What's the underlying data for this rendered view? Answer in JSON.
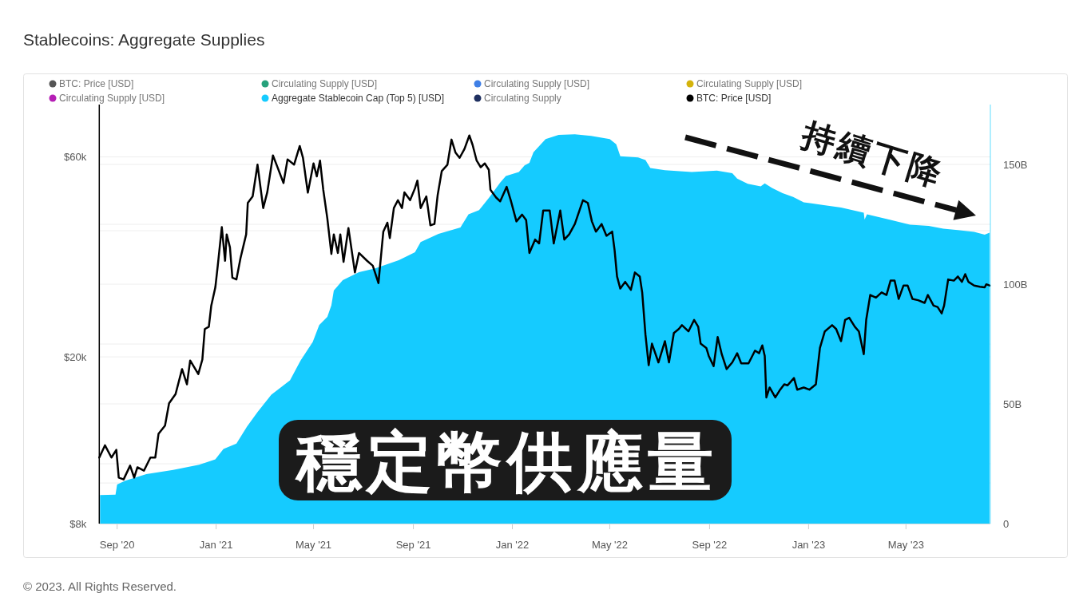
{
  "chart_data": {
    "type": "line",
    "title": "Stablecoins: Aggregate Supplies",
    "xlim": [
      "2020-08-10",
      "2023-08-13"
    ],
    "xticks": [
      {
        "value": "2020-09-01",
        "label": "Sep '20"
      },
      {
        "value": "2021-01-01",
        "label": "Jan '21"
      },
      {
        "value": "2021-05-01",
        "label": "May '21"
      },
      {
        "value": "2021-09-01",
        "label": "Sep '21"
      },
      {
        "value": "2022-01-01",
        "label": "Jan '22"
      },
      {
        "value": "2022-05-01",
        "label": "May '22"
      },
      {
        "value": "2022-09-01",
        "label": "Sep '22"
      },
      {
        "value": "2023-01-01",
        "label": "Jan '23"
      },
      {
        "value": "2023-05-01",
        "label": "May '23"
      }
    ],
    "log": "y",
    "ylim": [
      8000,
      80000
    ],
    "yticks": [
      {
        "value": 8000,
        "label": "$8k"
      },
      {
        "value": 10000,
        "label": null
      },
      {
        "value": 20000,
        "label": "$20k"
      },
      {
        "value": 40000,
        "label": null
      },
      {
        "value": 60000,
        "label": "$60k"
      }
    ],
    "y2lim": [
      0,
      175
    ],
    "y2ticks": [
      0,
      {
        "value": 25,
        "label": null
      },
      {
        "value": 50,
        "label": "50B"
      },
      {
        "value": 75,
        "label": null
      },
      {
        "value": 100,
        "label": "100B"
      },
      {
        "value": 125,
        "label": null
      },
      {
        "value": 150,
        "label": "150B"
      }
    ],
    "grid": "y",
    "legend": "top",
    "series": [
      {
        "name": "BTC: Price [USD]",
        "color": "#555555"
      },
      {
        "name": "Circulating Supply [USD]",
        "color": "#26a17b"
      },
      {
        "name": "Circulating Supply [USD]",
        "color": "#3f7fe6"
      },
      {
        "name": "Circulating Supply [USD]",
        "color": "#d4b30c"
      },
      {
        "name": "Circulating Supply [USD]",
        "color": "#b51fb5"
      },
      {
        "name": "Aggregate Stablecoin Cap (Top 5) [USD]",
        "color": "#15cbff",
        "type": "area",
        "axis": "y2",
        "x": [
          "2020-08-11",
          "2020-08-30",
          "2020-09-01",
          "2020-09-11",
          "2020-10-07",
          "2020-11-09",
          "2020-12-11",
          "2020-12-31",
          "2021-01-10",
          "2021-01-26",
          "2021-02-08",
          "2021-02-21",
          "2021-03-10",
          "2021-04-02",
          "2021-04-15",
          "2021-04-30",
          "2021-05-08",
          "2021-05-18",
          "2021-05-23",
          "2021-05-26",
          "2021-06-06",
          "2021-06-26",
          "2021-07-16",
          "2021-08-14",
          "2021-09-03",
          "2021-09-10",
          "2021-10-02",
          "2021-10-29",
          "2021-11-08",
          "2021-11-21",
          "2021-12-04",
          "2021-12-17",
          "2021-12-24",
          "2022-01-09",
          "2022-01-16",
          "2022-01-22",
          "2022-01-27",
          "2022-02-11",
          "2022-02-27",
          "2022-03-19",
          "2022-04-08",
          "2022-05-01",
          "2022-05-09",
          "2022-05-14",
          "2022-06-05",
          "2022-06-14",
          "2022-06-20",
          "2022-07-08",
          "2022-08-10",
          "2022-09-10",
          "2022-09-29",
          "2022-10-05",
          "2022-10-18",
          "2022-11-03",
          "2022-11-08",
          "2022-11-17",
          "2022-11-30",
          "2022-12-13",
          "2022-12-26",
          "2023-01-18",
          "2023-02-10",
          "2023-03-10",
          "2023-03-11",
          "2023-03-14",
          "2023-04-10",
          "2023-05-06",
          "2023-05-29",
          "2023-06-16",
          "2023-07-04",
          "2023-07-24",
          "2023-08-06",
          "2023-08-12"
        ],
        "values": [
          11.9,
          12.1,
          16.3,
          17.9,
          20.7,
          22.4,
          24.6,
          26.8,
          31.2,
          33.4,
          40.5,
          46.6,
          53.8,
          59.8,
          68.1,
          75.8,
          82.9,
          86.3,
          91.2,
          97.3,
          101.7,
          105.0,
          106.6,
          110.0,
          113.3,
          117.6,
          121.0,
          123.7,
          129.2,
          130.9,
          136.4,
          142.4,
          145.2,
          146.8,
          149.6,
          150.7,
          155.1,
          160.6,
          162.3,
          162.6,
          161.9,
          160.6,
          158.4,
          153.4,
          152.9,
          151.8,
          148.5,
          147.6,
          146.8,
          147.4,
          146.3,
          144.1,
          141.9,
          140.8,
          142.1,
          140.2,
          138.0,
          136.4,
          134.2,
          133.1,
          132.0,
          129.8,
          127.0,
          129.2,
          127.0,
          124.8,
          124.3,
          123.2,
          122.6,
          121.8,
          120.7,
          121.5
        ]
      },
      {
        "name": "Circulating Supply",
        "color": "#1f3060"
      },
      {
        "name": "BTC: Price [USD]",
        "color": "#000000",
        "x": [
          "2020-08-10",
          "2020-08-17",
          "2020-08-25",
          "2020-08-31",
          "2020-09-03",
          "2020-09-09",
          "2020-09-17",
          "2020-09-22",
          "2020-09-26",
          "2020-10-04",
          "2020-10-12",
          "2020-10-18",
          "2020-10-22",
          "2020-10-30",
          "2020-11-04",
          "2020-11-12",
          "2020-11-20",
          "2020-11-26",
          "2020-11-30",
          "2020-12-10",
          "2020-12-15",
          "2020-12-18",
          "2020-12-23",
          "2020-12-26",
          "2020-12-31",
          "2021-01-03",
          "2021-01-08",
          "2021-01-12",
          "2021-01-14",
          "2021-01-18",
          "2021-01-21",
          "2021-01-26",
          "2021-01-31",
          "2021-02-07",
          "2021-02-09",
          "2021-02-15",
          "2021-02-21",
          "2021-02-28",
          "2021-03-05",
          "2021-03-12",
          "2021-03-17",
          "2021-03-25",
          "2021-03-30",
          "2021-04-07",
          "2021-04-14",
          "2021-04-18",
          "2021-04-24",
          "2021-05-01",
          "2021-05-05",
          "2021-05-09",
          "2021-05-13",
          "2021-05-18",
          "2021-05-23",
          "2021-05-26",
          "2021-05-31",
          "2021-06-03",
          "2021-06-07",
          "2021-06-13",
          "2021-06-21",
          "2021-06-26",
          "2021-07-06",
          "2021-07-13",
          "2021-07-20",
          "2021-07-26",
          "2021-07-31",
          "2021-08-03",
          "2021-08-08",
          "2021-08-13",
          "2021-08-18",
          "2021-08-21",
          "2021-08-28",
          "2021-09-03",
          "2021-09-06",
          "2021-09-10",
          "2021-09-17",
          "2021-09-22",
          "2021-09-27",
          "2021-10-01",
          "2021-10-06",
          "2021-10-13",
          "2021-10-18",
          "2021-10-23",
          "2021-10-28",
          "2021-11-03",
          "2021-11-09",
          "2021-11-13",
          "2021-11-18",
          "2021-11-23",
          "2021-11-28",
          "2021-12-03",
          "2021-12-05",
          "2021-12-12",
          "2021-12-17",
          "2021-12-25",
          "2021-12-30",
          "2022-01-06",
          "2022-01-13",
          "2022-01-18",
          "2022-01-22",
          "2022-01-29",
          "2022-02-03",
          "2022-02-08",
          "2022-02-16",
          "2022-02-21",
          "2022-03-01",
          "2022-03-06",
          "2022-03-12",
          "2022-03-19",
          "2022-03-29",
          "2022-04-04",
          "2022-04-09",
          "2022-04-14",
          "2022-04-21",
          "2022-04-27",
          "2022-05-04",
          "2022-05-07",
          "2022-05-10",
          "2022-05-14",
          "2022-05-20",
          "2022-05-27",
          "2022-06-01",
          "2022-06-07",
          "2022-06-10",
          "2022-06-14",
          "2022-06-18",
          "2022-06-22",
          "2022-06-30",
          "2022-07-08",
          "2022-07-13",
          "2022-07-19",
          "2022-07-25",
          "2022-07-29",
          "2022-08-06",
          "2022-08-13",
          "2022-08-18",
          "2022-08-21",
          "2022-08-28",
          "2022-08-31",
          "2022-09-06",
          "2022-09-11",
          "2022-09-16",
          "2022-09-22",
          "2022-09-29",
          "2022-10-05",
          "2022-10-10",
          "2022-10-19",
          "2022-10-27",
          "2022-11-01",
          "2022-11-05",
          "2022-11-08",
          "2022-11-10",
          "2022-11-14",
          "2022-11-21",
          "2022-11-27",
          "2022-12-02",
          "2022-12-06",
          "2022-12-14",
          "2022-12-18",
          "2022-12-26",
          "2023-01-02",
          "2023-01-10",
          "2023-01-15",
          "2023-01-21",
          "2023-01-30",
          "2023-02-04",
          "2023-02-10",
          "2023-02-15",
          "2023-02-20",
          "2023-02-27",
          "2023-03-04",
          "2023-03-10",
          "2023-03-13",
          "2023-03-18",
          "2023-03-25",
          "2023-04-01",
          "2023-04-07",
          "2023-04-12",
          "2023-04-17",
          "2023-04-22",
          "2023-04-28",
          "2023-05-03",
          "2023-05-09",
          "2023-05-16",
          "2023-05-24",
          "2023-05-28",
          "2023-06-04",
          "2023-06-09",
          "2023-06-14",
          "2023-06-17",
          "2023-06-22",
          "2023-06-29",
          "2023-07-04",
          "2023-07-09",
          "2023-07-13",
          "2023-07-17",
          "2023-07-24",
          "2023-07-31",
          "2023-08-06",
          "2023-08-08",
          "2023-08-12"
        ],
        "values": [
          11500,
          12300,
          11500,
          12000,
          10300,
          10200,
          11000,
          10300,
          10900,
          10700,
          11500,
          11500,
          13100,
          13700,
          15500,
          16300,
          18700,
          17200,
          19600,
          18200,
          19700,
          23300,
          23600,
          26500,
          29300,
          33000,
          40800,
          33900,
          39200,
          36500,
          30900,
          30600,
          34400,
          39200,
          46600,
          48300,
          57500,
          45300,
          49400,
          60500,
          57100,
          52000,
          59200,
          57500,
          63700,
          59700,
          49300,
          57900,
          53900,
          58800,
          50100,
          42800,
          35200,
          39200,
          35400,
          39200,
          33700,
          40600,
          31800,
          35400,
          33900,
          33000,
          30000,
          39800,
          41800,
          38400,
          45300,
          47300,
          45300,
          49400,
          47300,
          50500,
          52700,
          45300,
          48300,
          41200,
          41500,
          48700,
          55500,
          57500,
          66000,
          61400,
          59700,
          62700,
          67500,
          64100,
          58800,
          56700,
          57900,
          55900,
          50100,
          48000,
          47000,
          50900,
          47300,
          42100,
          43700,
          42400,
          35400,
          38100,
          37300,
          44700,
          44700,
          37300,
          44700,
          38100,
          39200,
          41500,
          47300,
          46600,
          42100,
          39800,
          41500,
          38900,
          39800,
          35900,
          31100,
          29100,
          30200,
          28900,
          31800,
          31100,
          28500,
          22600,
          19100,
          21500,
          19400,
          21800,
          19400,
          22800,
          23300,
          23800,
          23000,
          24500,
          23600,
          21500,
          21000,
          20100,
          19000,
          22300,
          20300,
          18700,
          19400,
          20400,
          19300,
          19300,
          20700,
          20400,
          21300,
          20100,
          16000,
          16900,
          16000,
          16700,
          17200,
          17100,
          17800,
          16700,
          16900,
          16700,
          17200,
          21000,
          23000,
          23800,
          23300,
          21800,
          24500,
          24800,
          23600,
          23000,
          20300,
          24500,
          28100,
          27700,
          28500,
          28100,
          30400,
          30400,
          27500,
          29600,
          29600,
          27500,
          27300,
          26900,
          28100,
          26500,
          26300,
          25400,
          26500,
          30600,
          30400,
          31100,
          30200,
          31500,
          30200,
          29600,
          29400,
          29300,
          29800,
          29600
        ]
      }
    ],
    "annotations": [
      "持續下降",
      "穩定幣供應量",
      "© 2023. All Rights Reserved."
    ]
  }
}
